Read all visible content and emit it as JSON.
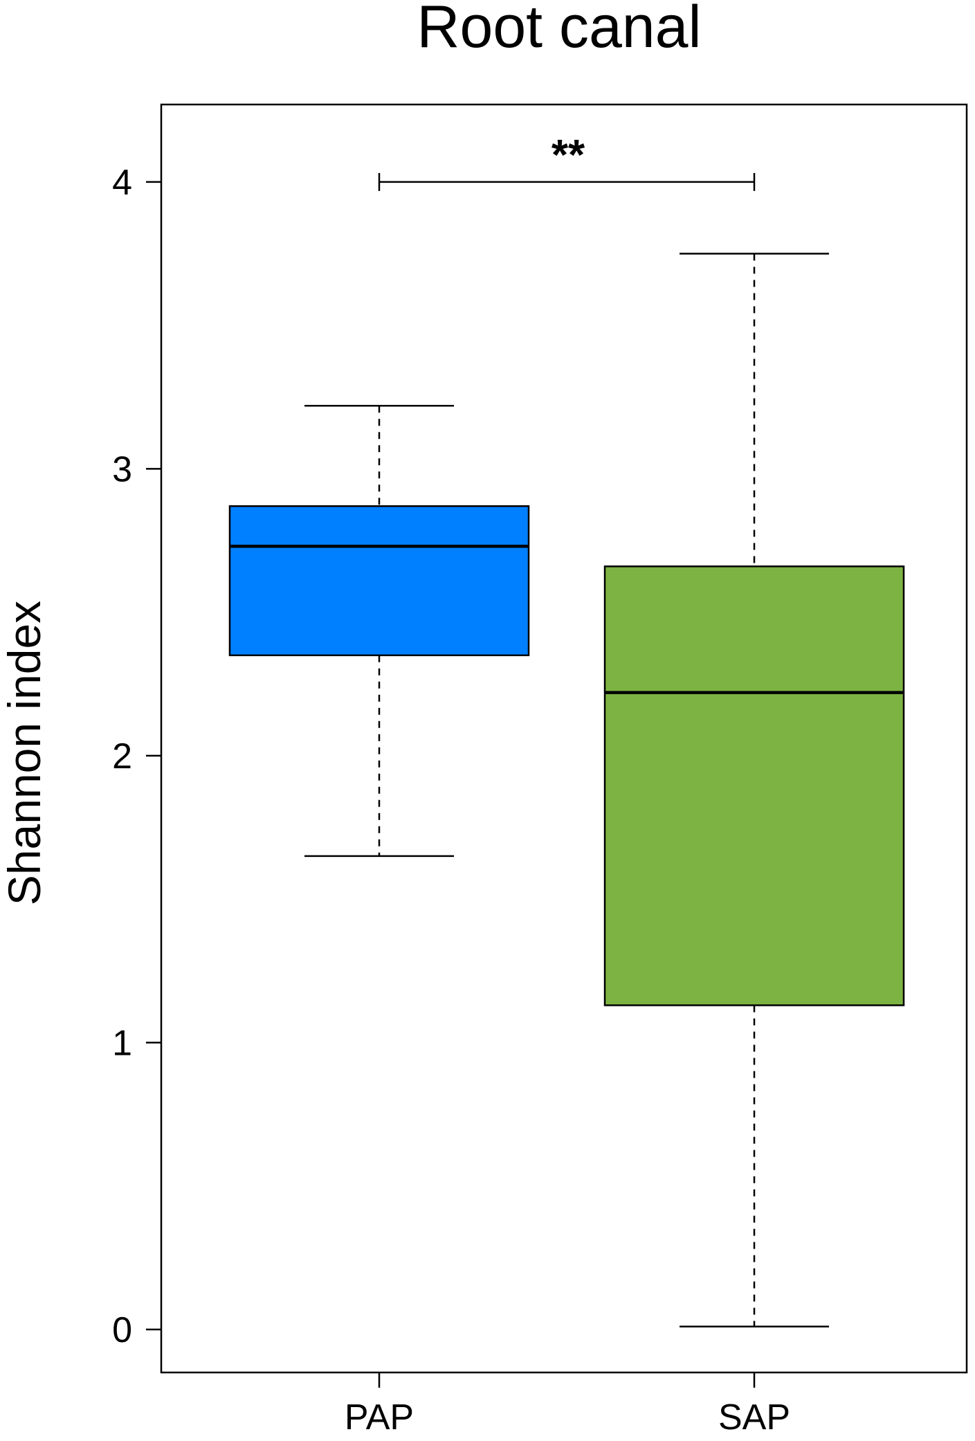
{
  "chart_data": {
    "type": "box",
    "title": "Root canal",
    "xlabel": "",
    "ylabel": "Shannon index",
    "categories": [
      "PAP",
      "SAP"
    ],
    "yticks": [
      "0",
      "1",
      "2",
      "3",
      "4"
    ],
    "ylim": [
      -0.15,
      4.27
    ],
    "grid": false,
    "boxes": [
      {
        "category": "PAP",
        "color": "#0080FF",
        "whisker_low": 1.65,
        "q1": 2.35,
        "median": 2.73,
        "q3": 2.87,
        "whisker_high": 3.22
      },
      {
        "category": "SAP",
        "color": "#7CB342",
        "whisker_low": 0.01,
        "q1": 1.13,
        "median": 2.22,
        "q3": 2.66,
        "whisker_high": 3.75
      }
    ],
    "significance": {
      "label": "**",
      "between": [
        "PAP",
        "SAP"
      ],
      "y": 4.0
    }
  }
}
